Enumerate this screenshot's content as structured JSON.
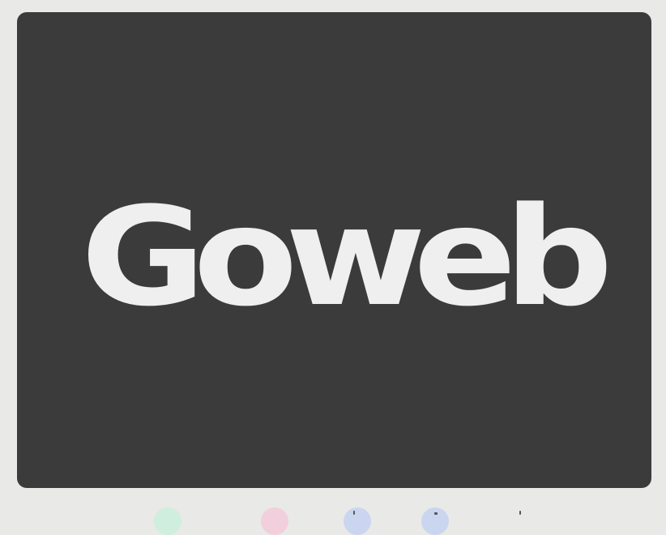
{
  "window": {
    "logo_text": "Goweb",
    "colors": {
      "page_background": "#e9e9e7",
      "card_background": "#3b3b3b",
      "logo_text": "#efefef"
    }
  },
  "dock": {
    "icons": [
      {
        "name": "app-icon-green",
        "color": "#cfeede"
      },
      {
        "name": "app-icon-pink",
        "color": "#f2cfdc"
      },
      {
        "name": "app-icon-blue",
        "color": "#cad6ef"
      },
      {
        "name": "app-icon-blue-2",
        "color": "#cad6ef"
      }
    ]
  }
}
